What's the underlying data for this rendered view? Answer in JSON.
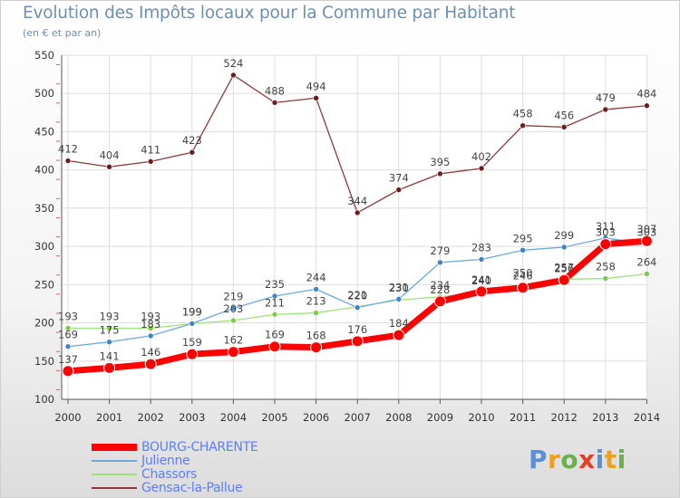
{
  "chart_data": {
    "type": "line",
    "title": "Evolution des Impôts locaux pour la Commune par Habitant",
    "subtitle": "(en € et par an)",
    "xlabel": "",
    "ylabel": "",
    "x": [
      "2000",
      "2001",
      "2002",
      "2003",
      "2004",
      "2005",
      "2006",
      "2007",
      "2008",
      "2009",
      "2010",
      "2011",
      "2012",
      "2013",
      "2014"
    ],
    "ylim": [
      100,
      550
    ],
    "yticks": [
      100,
      150,
      200,
      250,
      300,
      350,
      400,
      450,
      500,
      550
    ],
    "grid": true,
    "legend_position": "bottom-left",
    "series": [
      {
        "name": "BOURG-CHARENTE",
        "color": "#ff0000",
        "marker_color": "#ff0000",
        "values": [
          137,
          141,
          146,
          159,
          162,
          169,
          168,
          176,
          184,
          228,
          241,
          246,
          256,
          303,
          307
        ]
      },
      {
        "name": "Julienne",
        "color": "#6fa8dc",
        "marker_color": "#3d85c6",
        "values": [
          169,
          175,
          183,
          199,
          219,
          235,
          244,
          220,
          231,
          279,
          283,
          295,
          299,
          311,
          303
        ]
      },
      {
        "name": "Chassors",
        "color": "#9fe27a",
        "marker_color": "#7acb4b",
        "values": [
          193,
          193,
          193,
          199,
          203,
          211,
          213,
          221,
          230,
          234,
          240,
          250,
          257,
          258,
          264
        ]
      },
      {
        "name": "Gensac-la-Pallue",
        "color": "#8b3a3a",
        "marker_color": "#6b1e1e",
        "values": [
          412,
          404,
          411,
          423,
          524,
          488,
          494,
          344,
          374,
          395,
          402,
          458,
          456,
          479,
          484
        ]
      }
    ]
  },
  "logo": {
    "text": "Proxiti",
    "letter_colors": [
      "#5b8fd6",
      "#f0a020",
      "#6ab04c",
      "#e0402a",
      "#5b8fd6",
      "#f0a020",
      "#6ab04c"
    ]
  }
}
